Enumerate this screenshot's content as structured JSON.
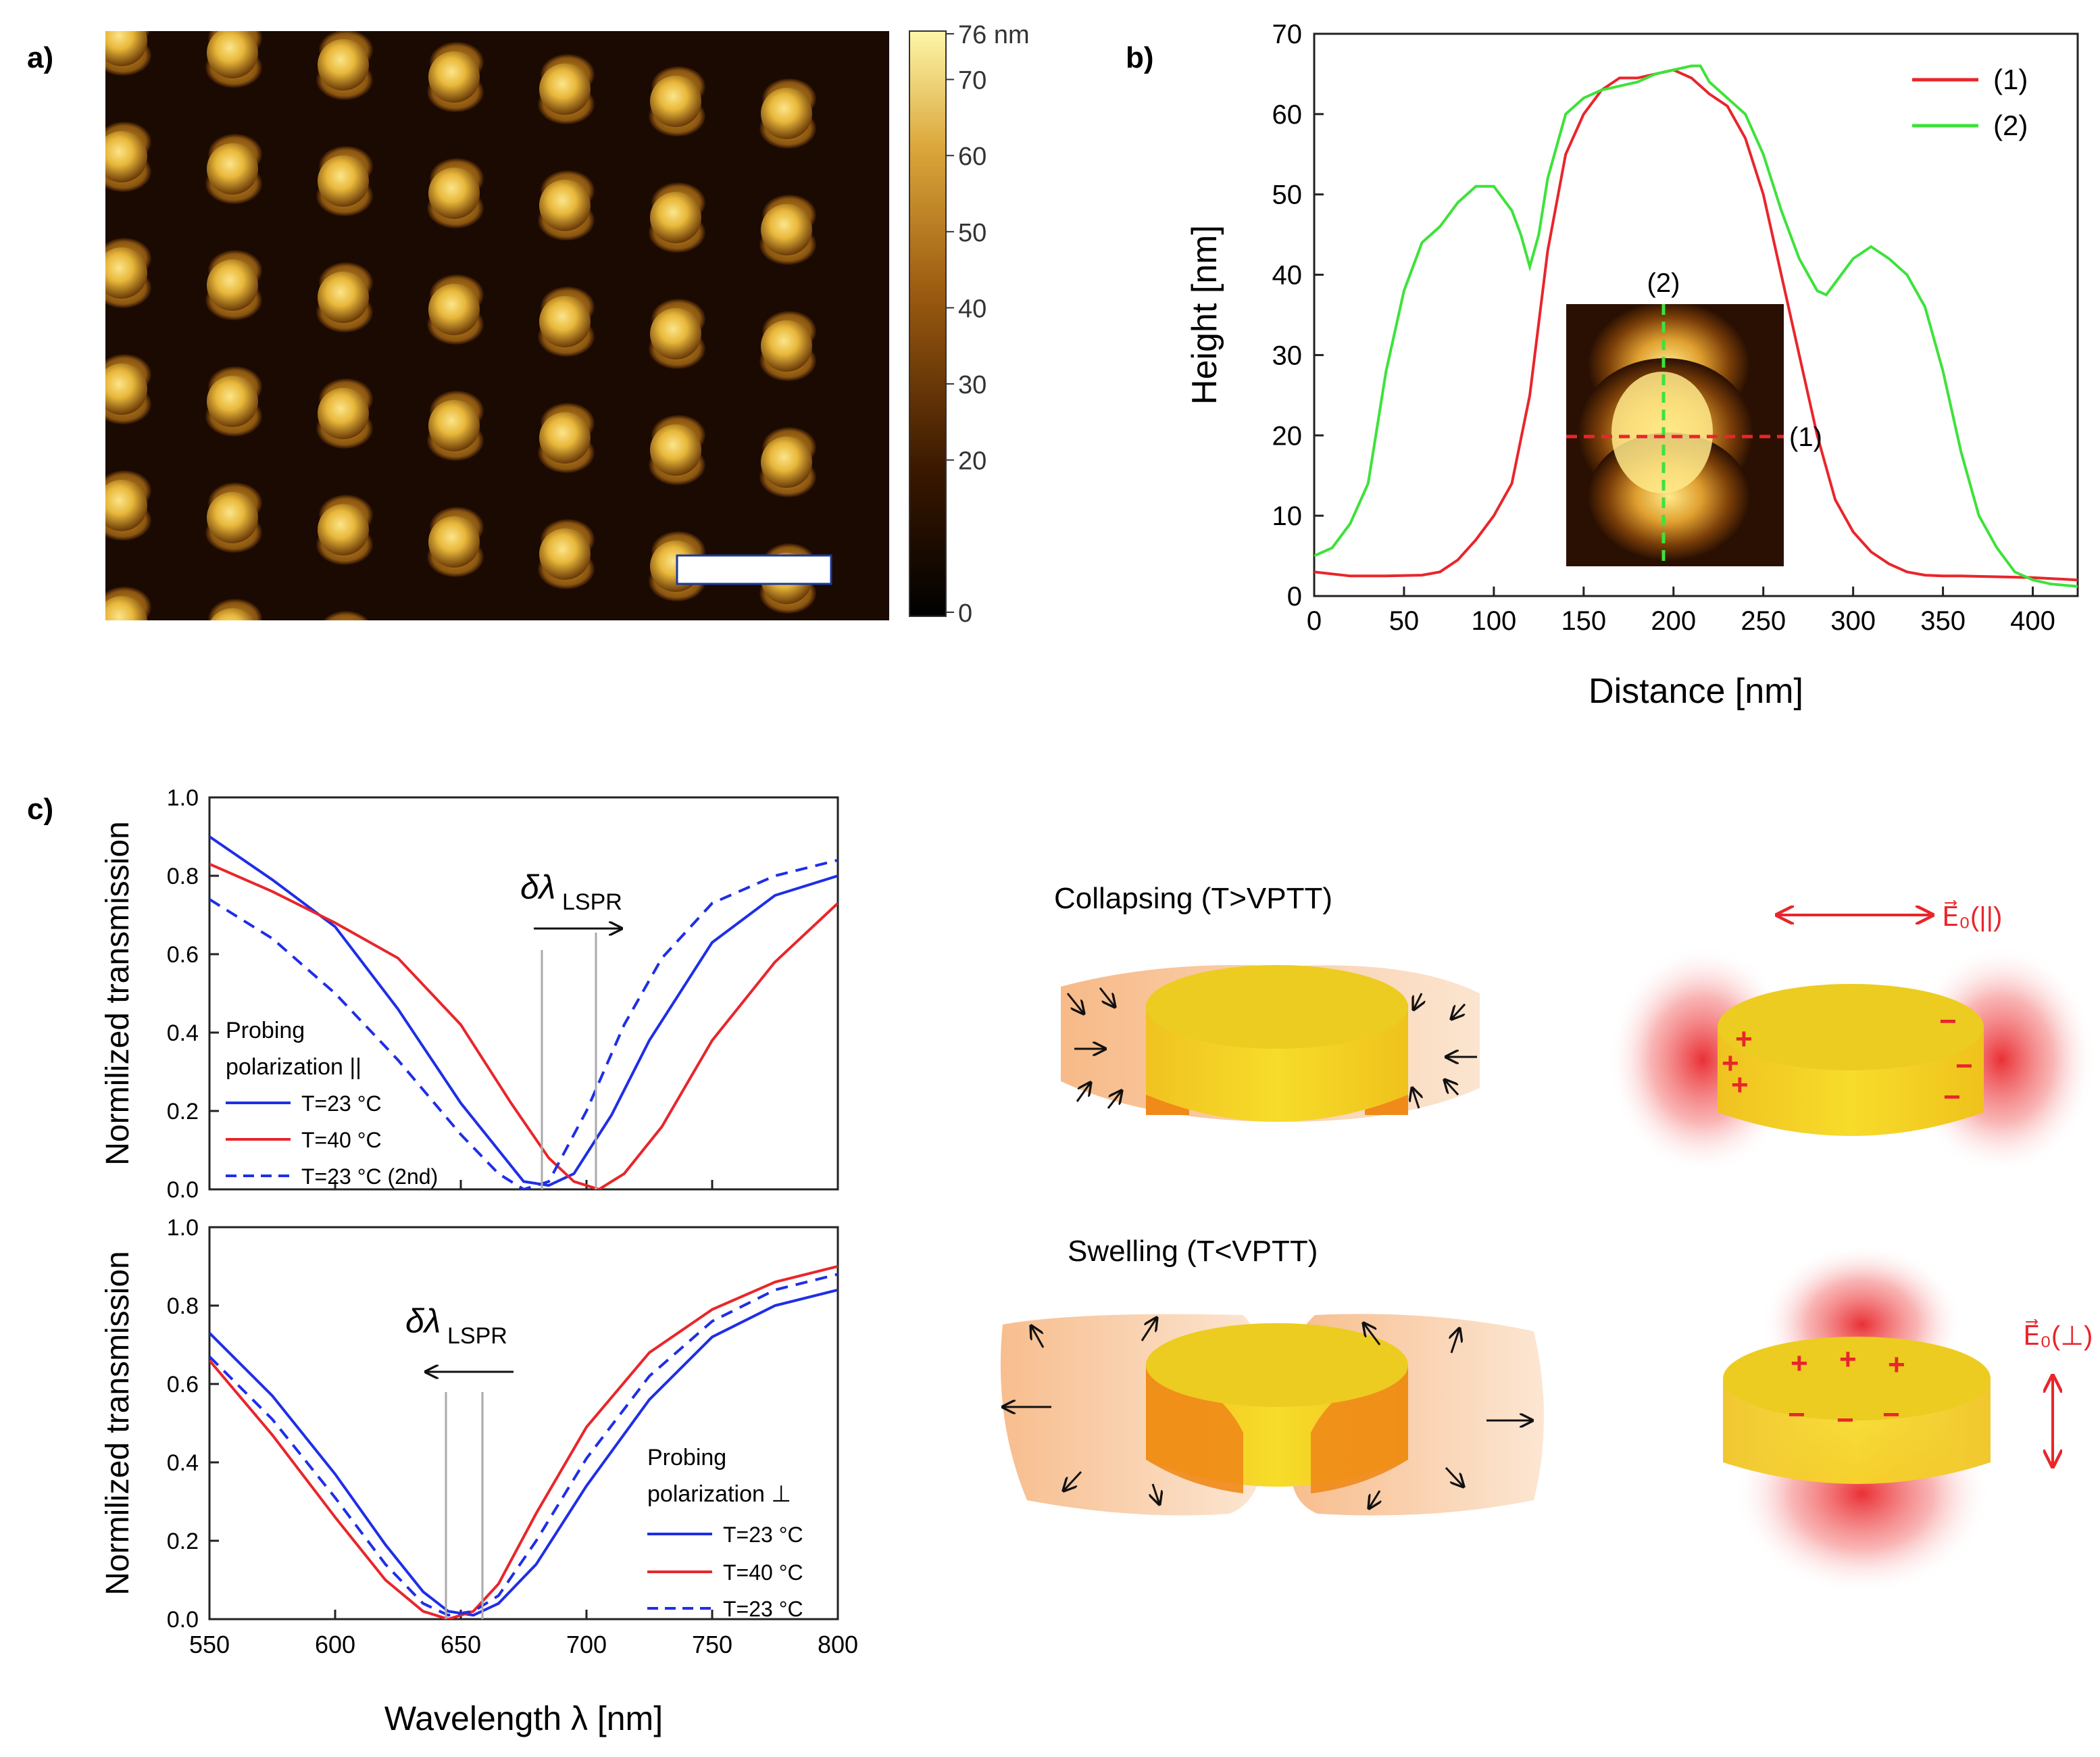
{
  "panel_labels": {
    "a": "a)",
    "b": "b)",
    "c": "c)"
  },
  "colors": {
    "red": "#e8262b",
    "green": "#3ee23a",
    "blue": "#1f2ee6",
    "afm_dark": "#1a0a02",
    "afm_gold": "#f2d060"
  },
  "panel_a": {
    "colorbar_ticks": [
      "76 nm",
      "70",
      "60",
      "50",
      "40",
      "30",
      "20",
      "0"
    ],
    "colorbar_values": [
      76,
      70,
      60,
      50,
      40,
      30,
      20,
      0
    ]
  },
  "panel_b": {
    "inset_labels": {
      "v": "(2)",
      "h": "(1)"
    },
    "chart_data": {
      "type": "line",
      "xlabel": "Distance [nm]",
      "ylabel": "Height [nm]",
      "xlim": [
        0,
        425
      ],
      "ylim": [
        0,
        70
      ],
      "xticks": [
        0,
        50,
        100,
        150,
        200,
        250,
        300,
        350,
        400
      ],
      "yticks": [
        0,
        10,
        20,
        30,
        40,
        50,
        60,
        70
      ],
      "legend_position": "top-right",
      "series": [
        {
          "name": "(1)",
          "color": "#e8262b",
          "x": [
            0,
            20,
            40,
            60,
            70,
            80,
            90,
            100,
            110,
            120,
            130,
            140,
            150,
            160,
            170,
            180,
            190,
            200,
            210,
            220,
            230,
            240,
            250,
            260,
            270,
            280,
            290,
            300,
            310,
            320,
            330,
            340,
            350,
            360,
            380,
            400,
            425
          ],
          "y": [
            3,
            2.5,
            2.5,
            2.6,
            3,
            4.5,
            7,
            10,
            14,
            25,
            43,
            55,
            60,
            63,
            64.5,
            64.5,
            65,
            65.5,
            64.5,
            62.5,
            61,
            57,
            50,
            40,
            30,
            20,
            12,
            8,
            5.5,
            4,
            3,
            2.6,
            2.5,
            2.5,
            2.4,
            2.3,
            2
          ]
        },
        {
          "name": "(2)",
          "color": "#3ee23a",
          "x": [
            0,
            10,
            20,
            30,
            40,
            50,
            60,
            70,
            80,
            90,
            100,
            110,
            115,
            120,
            125,
            130,
            140,
            150,
            160,
            170,
            180,
            190,
            200,
            210,
            215,
            220,
            230,
            240,
            250,
            260,
            270,
            280,
            285,
            290,
            300,
            310,
            320,
            330,
            340,
            350,
            360,
            370,
            380,
            390,
            400,
            410,
            425
          ],
          "y": [
            5,
            6,
            9,
            14,
            28,
            38,
            44,
            46,
            49,
            51,
            51,
            48,
            45,
            41,
            45,
            52,
            60,
            62,
            63,
            63.5,
            64,
            65,
            65.5,
            66,
            66,
            64,
            62,
            60,
            55,
            48,
            42,
            38,
            37.5,
            39,
            42,
            43.5,
            42,
            40,
            36,
            28,
            18,
            10,
            6,
            3,
            2,
            1.5,
            1.2
          ]
        }
      ]
    }
  },
  "panel_c": {
    "xlabel": "Wavelength λ [nm]",
    "shared_ylabel": "Normilized transmission",
    "top": {
      "shift_label": "δλ",
      "shift_sub": "LSPR",
      "legend_title": [
        "Probing",
        "polarization ||"
      ],
      "legend": [
        "T=23 °C",
        "T=40 °C",
        "T=23 °C (2nd)"
      ]
    },
    "bottom": {
      "shift_label": "δλ",
      "shift_sub": "LSPR",
      "legend_title": [
        "Probing",
        "polarization ⊥"
      ],
      "legend": [
        "T=23 °C",
        "T=40 °C",
        "T=23 °C"
      ]
    },
    "chart_data": [
      {
        "type": "line",
        "ylabel": "Normilized transmission",
        "xlim": [
          550,
          800
        ],
        "ylim": [
          0,
          1
        ],
        "yticks": [
          0.0,
          0.2,
          0.4,
          0.6,
          0.8,
          1.0
        ],
        "series": [
          {
            "name": "T=23 °C",
            "color": "#1f2ee6",
            "style": "solid",
            "x": [
              550,
              575,
              600,
              625,
              650,
              665,
              675,
              685,
              695,
              710,
              725,
              750,
              775,
              800
            ],
            "y": [
              0.9,
              0.79,
              0.67,
              0.46,
              0.22,
              0.1,
              0.02,
              0.01,
              0.04,
              0.19,
              0.38,
              0.63,
              0.75,
              0.8
            ]
          },
          {
            "name": "T=40 °C",
            "color": "#e8262b",
            "style": "solid",
            "x": [
              550,
              575,
              600,
              625,
              650,
              670,
              685,
              695,
              705,
              715,
              730,
              750,
              775,
              800
            ],
            "y": [
              0.83,
              0.76,
              0.68,
              0.59,
              0.42,
              0.22,
              0.08,
              0.02,
              0.0,
              0.04,
              0.16,
              0.38,
              0.58,
              0.73
            ]
          },
          {
            "name": "T=23 °C (2nd)",
            "color": "#1f2ee6",
            "style": "dashed",
            "x": [
              550,
              575,
              600,
              625,
              650,
              665,
              675,
              685,
              700,
              715,
              730,
              750,
              775,
              800
            ],
            "y": [
              0.74,
              0.64,
              0.5,
              0.33,
              0.14,
              0.04,
              0.0,
              0.02,
              0.2,
              0.42,
              0.59,
              0.73,
              0.8,
              0.84
            ]
          }
        ]
      },
      {
        "type": "line",
        "xlabel": "Wavelength λ [nm]",
        "ylabel": "Normilized transmission",
        "xlim": [
          550,
          800
        ],
        "ylim": [
          0,
          1
        ],
        "xticks": [
          550,
          600,
          650,
          700,
          750,
          800
        ],
        "yticks": [
          0.0,
          0.2,
          0.4,
          0.6,
          0.8,
          1.0
        ],
        "series": [
          {
            "name": "T=23 °C",
            "color": "#1f2ee6",
            "style": "solid",
            "x": [
              550,
              575,
              600,
              620,
              635,
              645,
              655,
              665,
              680,
              700,
              725,
              750,
              775,
              800
            ],
            "y": [
              0.73,
              0.57,
              0.37,
              0.19,
              0.07,
              0.02,
              0.01,
              0.04,
              0.14,
              0.34,
              0.56,
              0.72,
              0.8,
              0.84
            ]
          },
          {
            "name": "T=40 °C",
            "color": "#e8262b",
            "style": "solid",
            "x": [
              550,
              575,
              600,
              620,
              635,
              645,
              655,
              665,
              680,
              700,
              725,
              750,
              775,
              800
            ],
            "y": [
              0.66,
              0.47,
              0.26,
              0.1,
              0.02,
              0.0,
              0.02,
              0.09,
              0.27,
              0.49,
              0.68,
              0.79,
              0.86,
              0.9
            ]
          },
          {
            "name": "T=23 °C",
            "color": "#1f2ee6",
            "style": "dashed",
            "x": [
              550,
              575,
              600,
              620,
              635,
              645,
              655,
              665,
              680,
              700,
              725,
              750,
              775,
              800
            ],
            "y": [
              0.67,
              0.51,
              0.31,
              0.14,
              0.04,
              0.01,
              0.02,
              0.06,
              0.2,
              0.41,
              0.62,
              0.76,
              0.84,
              0.88
            ]
          }
        ]
      }
    ]
  },
  "schematic": {
    "collapsing_title": "Collapsing (T>VPTT)",
    "swelling_title": "Swelling (T<VPTT)",
    "e_par_label": "E⃗₀(||)",
    "e_perp_label": "E⃗₀(⊥)",
    "plus": "+",
    "minus": "−"
  }
}
